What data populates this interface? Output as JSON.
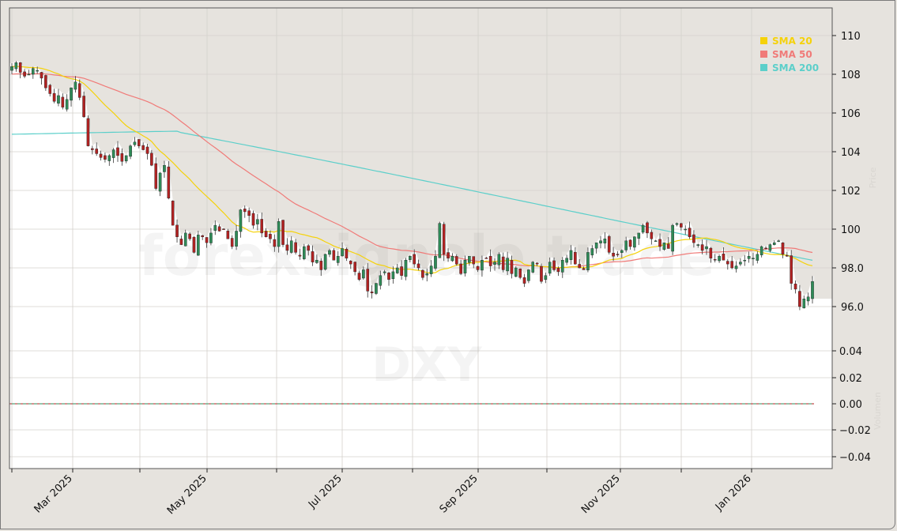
{
  "chart_data": {
    "type": "candlestick",
    "symbol": "DXY",
    "watermark": "forexsignale.trade",
    "watermark_symbol": "DXY",
    "y_label_price": "Price",
    "y_label_volume": "Volumen",
    "price_ylim": [
      94.5,
      111.5
    ],
    "price_ticks": [
      "110",
      "108",
      "106",
      "104",
      "102",
      "100",
      "98.0",
      "96.0"
    ],
    "volume_ticks": [
      "0.04",
      "0.02",
      "0.00",
      "−0.02",
      "−0.04"
    ],
    "x_ticks": [
      "Mar 2025",
      "May 2025",
      "Jul 2025",
      "Sep 2025",
      "Nov 2025",
      "Jan 2026"
    ],
    "legend": [
      {
        "label": "SMA 20",
        "color": "#f5d20a"
      },
      {
        "label": "SMA 50",
        "color": "#f07a78"
      },
      {
        "label": "SMA 200",
        "color": "#5ccfca"
      }
    ],
    "colors": {
      "up": "#2e8b57",
      "down": "#b22222",
      "wick": "#333333",
      "bg_above": "#e6e3de",
      "bg_below": "#ffffff",
      "grid": "#d4d1cc"
    },
    "closes": [
      108.4,
      108.6,
      108.1,
      107.9,
      108.0,
      108.3,
      108.2,
      107.8,
      107.3,
      107.0,
      106.6,
      106.9,
      106.3,
      106.7,
      107.3,
      107.6,
      106.8,
      105.8,
      104.3,
      104.1,
      103.9,
      103.7,
      103.6,
      103.8,
      104.1,
      103.8,
      103.5,
      103.8,
      104.3,
      104.5,
      104.3,
      104.1,
      103.9,
      103.3,
      102.1,
      102.9,
      103.3,
      101.6,
      100.2,
      99.6,
      99.2,
      99.8,
      99.5,
      98.8,
      99.7,
      99.6,
      99.3,
      99.8,
      100.2,
      99.9,
      100.0,
      99.5,
      99.1,
      99.9,
      101.0,
      100.9,
      100.7,
      100.2,
      100.5,
      99.8,
      99.6,
      99.5,
      99.1,
      100.4,
      99.2,
      98.9,
      99.4,
      98.8,
      98.6,
      99.1,
      98.9,
      98.3,
      98.4,
      97.9,
      98.7,
      98.9,
      98.4,
      98.6,
      99.0,
      98.5,
      98.2,
      97.8,
      97.4,
      97.9,
      96.8,
      96.7,
      97.2,
      97.6,
      97.8,
      97.4,
      97.8,
      98.0,
      97.6,
      98.4,
      98.6,
      98.2,
      98.0,
      97.5,
      97.7,
      98.1,
      98.6,
      100.3,
      98.7,
      98.5,
      98.6,
      98.2,
      97.7,
      98.4,
      98.6,
      98.2,
      97.9,
      98.4,
      98.5,
      98.1,
      98.3,
      98.7,
      97.9,
      98.5,
      97.7,
      98.0,
      97.5,
      97.2,
      97.9,
      98.3,
      98.2,
      97.3,
      97.6,
      98.3,
      97.9,
      97.8,
      98.4,
      98.5,
      98.9,
      98.2,
      98.0,
      97.9,
      98.8,
      99.0,
      99.3,
      99.4,
      99.5,
      98.8,
      98.6,
      98.7,
      98.9,
      99.4,
      99.1,
      99.6,
      99.8,
      100.2,
      99.8,
      99.5,
      99.4,
      99.1,
      99.3,
      99.0,
      100.2,
      100.3,
      100.1,
      100.0,
      99.6,
      99.3,
      99.2,
      98.9,
      99.1,
      98.5,
      98.4,
      98.6,
      98.4,
      98.2,
      98.0,
      98.1,
      98.3,
      98.4,
      98.6,
      98.5,
      98.7,
      99.1,
      99.0,
      99.2,
      99.3,
      99.4,
      98.7,
      98.6,
      97.2,
      96.9,
      96.0,
      96.4,
      96.5,
      97.3
    ]
  }
}
